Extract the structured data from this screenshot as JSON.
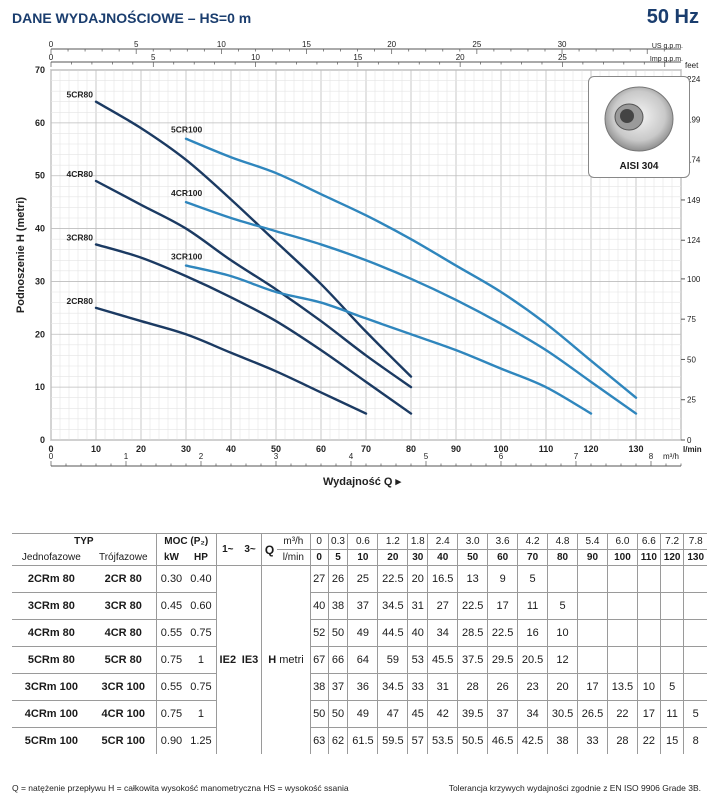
{
  "header": {
    "title": "DANE WYDAJNOŚCIOWE   –   HS=0 m",
    "frequency": "50 Hz"
  },
  "impeller_badge": {
    "label": "AISI 304"
  },
  "chart_data": {
    "type": "line",
    "title": "DANE WYDAJNOŚCIOWE – HS=0 m",
    "xlabel": "Wydajność  Q",
    "ylabel": "Podnoszenie  H  (metri)",
    "x_unit": "l/min",
    "y_unit_right": "feet",
    "xlim": [
      0,
      140
    ],
    "ylim": [
      0,
      70
    ],
    "x_ticks": [
      0,
      10,
      20,
      30,
      40,
      50,
      60,
      70,
      80,
      90,
      100,
      110,
      120,
      130
    ],
    "y_ticks": [
      0,
      10,
      20,
      30,
      40,
      50,
      60,
      70
    ],
    "feet_ticks": [
      0,
      25,
      50,
      75,
      100,
      124,
      149,
      174,
      199,
      224
    ],
    "m3h_ticks": [
      0,
      1,
      2,
      3,
      4,
      5,
      6,
      7,
      8
    ],
    "m3h_unit": "m³/h",
    "us_gpm_ticks": [
      0,
      5,
      10,
      15,
      20,
      25,
      30
    ],
    "us_gpm_unit": "US g.p.m.",
    "imp_gpm_ticks": [
      0,
      5,
      10,
      15,
      20,
      25
    ],
    "imp_gpm_unit": "Imp g.p.m.",
    "series": [
      {
        "name": "2CR80",
        "color": "#1b3a62",
        "x": [
          10,
          20,
          30,
          40,
          50,
          60,
          70
        ],
        "y": [
          25,
          22.5,
          20,
          16.5,
          13,
          9,
          5
        ]
      },
      {
        "name": "3CR80",
        "color": "#1b3a62",
        "x": [
          10,
          20,
          30,
          40,
          50,
          60,
          70,
          80
        ],
        "y": [
          37,
          34.5,
          31,
          27,
          22.5,
          17,
          11,
          5
        ]
      },
      {
        "name": "4CR80",
        "color": "#1b3a62",
        "x": [
          10,
          20,
          30,
          40,
          50,
          60,
          70,
          80
        ],
        "y": [
          49,
          44.5,
          40,
          34,
          28.5,
          22.5,
          16,
          10
        ]
      },
      {
        "name": "5CR80",
        "color": "#1b3a62",
        "x": [
          10,
          20,
          30,
          40,
          50,
          60,
          70,
          80
        ],
        "y": [
          64,
          59,
          53,
          45.5,
          37.5,
          29.5,
          20.5,
          12
        ]
      },
      {
        "name": "3CR100",
        "color": "#2f86bd",
        "x": [
          30,
          40,
          50,
          60,
          70,
          80,
          90,
          100,
          110,
          120
        ],
        "y": [
          33,
          31,
          28,
          26,
          23,
          20,
          17,
          13.5,
          10,
          5
        ]
      },
      {
        "name": "4CR100",
        "color": "#2f86bd",
        "x": [
          30,
          40,
          50,
          60,
          70,
          80,
          90,
          100,
          110,
          120,
          130
        ],
        "y": [
          45,
          42,
          39.5,
          37,
          34,
          30.5,
          26.5,
          22,
          17,
          11,
          5
        ]
      },
      {
        "name": "5CR100",
        "color": "#2f86bd",
        "x": [
          30,
          40,
          50,
          60,
          70,
          80,
          90,
          100,
          110,
          120,
          130
        ],
        "y": [
          57,
          53.5,
          50.5,
          46.5,
          42.5,
          38,
          33,
          28,
          22,
          15,
          8
        ]
      }
    ]
  },
  "table": {
    "typ_header": "TYP",
    "moc_header": "MOC (P₂)",
    "single_phase": "Jednofazowe",
    "three_phase": "Trójfazowe",
    "kw": "kW",
    "hp": "HP",
    "phase1": "1~",
    "phase3": "3~",
    "q_label": "Q",
    "m3h": "m³/h",
    "lmin": "l/min",
    "h_label": "H",
    "metri": "metri",
    "ie2": "IE2",
    "ie3": "IE3",
    "q_m3h": [
      "0",
      "0.3",
      "0.6",
      "1.2",
      "1.8",
      "2.4",
      "3.0",
      "3.6",
      "4.2",
      "4.8",
      "5.4",
      "6.0",
      "6.6",
      "7.2",
      "7.8"
    ],
    "q_lmin": [
      "0",
      "5",
      "10",
      "20",
      "30",
      "40",
      "50",
      "60",
      "70",
      "80",
      "90",
      "100",
      "110",
      "120",
      "130"
    ],
    "rows": [
      {
        "single": "2CRm 80",
        "three": "2CR 80",
        "kw": "0.30",
        "hp": "0.40",
        "h": [
          "27",
          "26",
          "25",
          "22.5",
          "20",
          "16.5",
          "13",
          "9",
          "5",
          "",
          "",
          "",
          "",
          "",
          ""
        ]
      },
      {
        "single": "3CRm 80",
        "three": "3CR 80",
        "kw": "0.45",
        "hp": "0.60",
        "h": [
          "40",
          "38",
          "37",
          "34.5",
          "31",
          "27",
          "22.5",
          "17",
          "11",
          "5",
          "",
          "",
          "",
          "",
          ""
        ]
      },
      {
        "single": "4CRm 80",
        "three": "4CR 80",
        "kw": "0.55",
        "hp": "0.75",
        "h": [
          "52",
          "50",
          "49",
          "44.5",
          "40",
          "34",
          "28.5",
          "22.5",
          "16",
          "10",
          "",
          "",
          "",
          "",
          ""
        ]
      },
      {
        "single": "5CRm 80",
        "three": "5CR 80",
        "kw": "0.75",
        "hp": "1",
        "h": [
          "67",
          "66",
          "64",
          "59",
          "53",
          "45.5",
          "37.5",
          "29.5",
          "20.5",
          "12",
          "",
          "",
          "",
          "",
          ""
        ]
      },
      {
        "single": "3CRm 100",
        "three": "3CR 100",
        "kw": "0.55",
        "hp": "0.75",
        "h": [
          "38",
          "37",
          "36",
          "34.5",
          "33",
          "31",
          "28",
          "26",
          "23",
          "20",
          "17",
          "13.5",
          "10",
          "5",
          ""
        ]
      },
      {
        "single": "4CRm 100",
        "three": "4CR 100",
        "kw": "0.75",
        "hp": "1",
        "h": [
          "50",
          "50",
          "49",
          "47",
          "45",
          "42",
          "39.5",
          "37",
          "34",
          "30.5",
          "26.5",
          "22",
          "17",
          "11",
          "5"
        ]
      },
      {
        "single": "5CRm 100",
        "three": "5CR 100",
        "kw": "0.90",
        "hp": "1.25",
        "h": [
          "63",
          "62",
          "61.5",
          "59.5",
          "57",
          "53.5",
          "50.5",
          "46.5",
          "42.5",
          "38",
          "33",
          "28",
          "22",
          "15",
          "8"
        ]
      }
    ]
  },
  "footer": {
    "left": "Q = natężenie przepływu H = całkowita wysokość manometryczna   HS = wysokość ssania",
    "right": "Tolerancja krzywych wydajności zgodnie z EN ISO 9906 Grade 3B."
  }
}
